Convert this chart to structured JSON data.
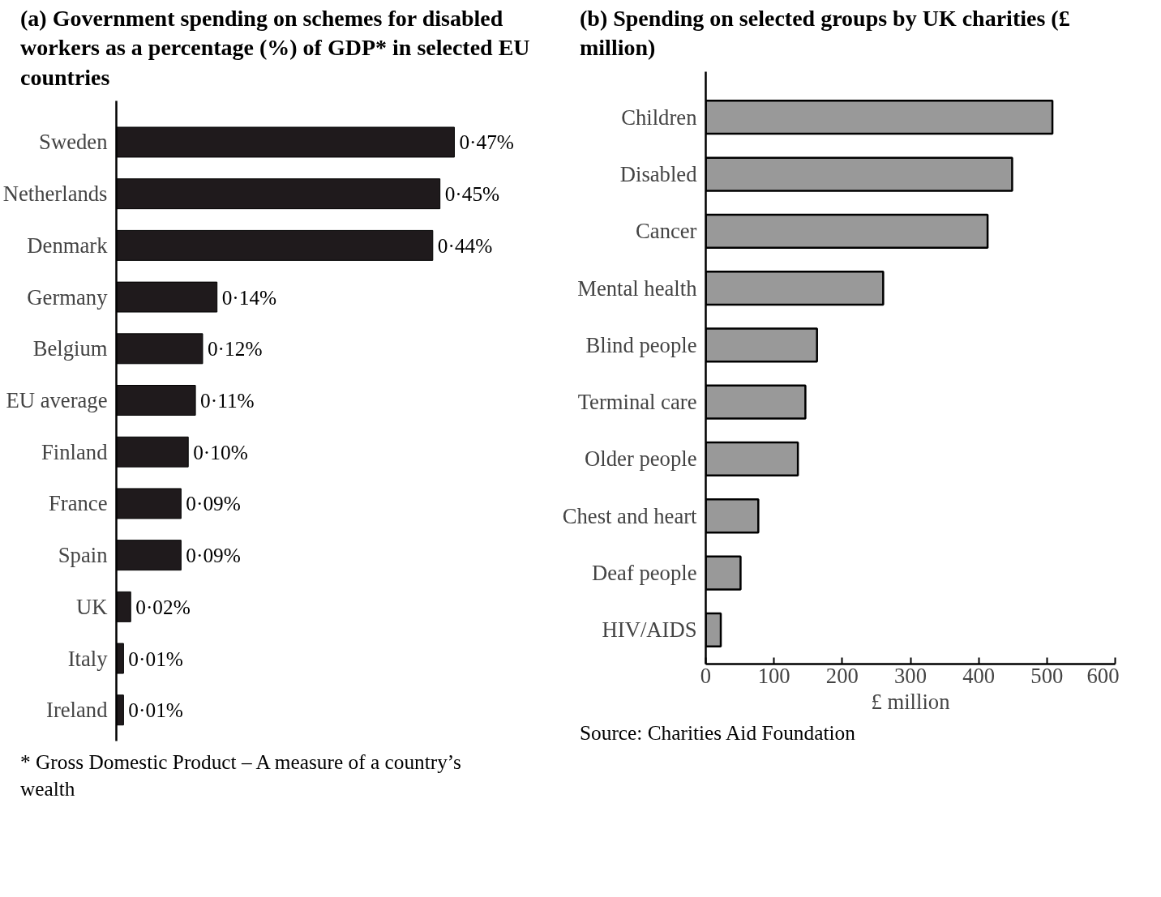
{
  "chart_data": [
    {
      "type": "bar",
      "orientation": "horizontal",
      "title": "(a) Government spending on schemes for disabled workers as a percentage (%) of GDP* in selected EU countries",
      "categories": [
        "Sweden",
        "Netherlands",
        "Denmark",
        "Germany",
        "Belgium",
        "EU average",
        "Finland",
        "France",
        "Spain",
        "UK",
        "Italy",
        "Ireland"
      ],
      "values": [
        0.47,
        0.45,
        0.44,
        0.14,
        0.12,
        0.11,
        0.1,
        0.09,
        0.09,
        0.02,
        0.01,
        0.01
      ],
      "value_labels": [
        "0·47%",
        "0·45%",
        "0·44%",
        "0·14%",
        "0·12%",
        "0·11%",
        "0·10%",
        "0·09%",
        "0·09%",
        "0·02%",
        "0·01%",
        "0·01%"
      ],
      "color": "#1f1a1c",
      "grid": false,
      "tick_labels": "y",
      "annotations": [
        "* Gross Domestic Product – A measure of a country’s wealth"
      ]
    },
    {
      "type": "bar",
      "orientation": "horizontal",
      "title": "(b) Spending on selected groups by UK charities (£ million)",
      "categories": [
        "Children",
        "Disabled",
        "Cancer",
        "Mental health",
        "Blind people",
        "Terminal care",
        "Older people",
        "Chest and heart",
        "Deaf people",
        "HIV/AIDS"
      ],
      "values": [
        508,
        449,
        413,
        260,
        163,
        146,
        135,
        77,
        51,
        22
      ],
      "color": "#999999",
      "xlim": [
        0,
        600
      ],
      "xticks": [
        0,
        100,
        200,
        300,
        400,
        500,
        600
      ],
      "xlabel": "£ million",
      "grid": false,
      "annotations": [
        "Source:  Charities Aid Foundation"
      ]
    }
  ]
}
